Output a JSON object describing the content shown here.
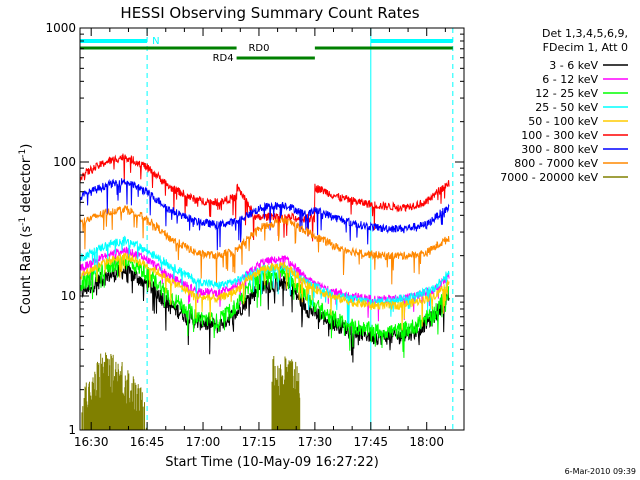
{
  "chart_data": {
    "type": "line",
    "title": "HESSI Observing Summary Count Rates",
    "xlabel": "Start Time (10-May-09 16:27:22)",
    "ylabel_main": "Count Rate (s",
    "ylabel_sup1": "-1",
    "ylabel_mid": " detector",
    "ylabel_sup2": "-1",
    "ylabel_end": ")",
    "x_unit": "minutes of day",
    "xlim": [
      987,
      1090
    ],
    "ylim": [
      1,
      1000
    ],
    "yscale": "log",
    "x_ticks": [
      {
        "value": 990,
        "label": "16:30"
      },
      {
        "value": 1005,
        "label": "16:45"
      },
      {
        "value": 1020,
        "label": "17:00"
      },
      {
        "value": 1035,
        "label": "17:15"
      },
      {
        "value": 1050,
        "label": "17:30"
      },
      {
        "value": 1065,
        "label": "17:45"
      },
      {
        "value": 1080,
        "label": "18:00"
      }
    ],
    "y_ticks": [
      {
        "value": 1,
        "label": "1"
      },
      {
        "value": 10,
        "label": "10"
      },
      {
        "value": 100,
        "label": "100"
      },
      {
        "value": 1000,
        "label": "1000"
      }
    ],
    "legend": {
      "position": "right",
      "header": [
        "Det 1,3,4,5,6,9,",
        "FDecim 1, Att 0"
      ]
    },
    "series": [
      {
        "name": "3 - 6 keV",
        "color": "#000000",
        "x": [
          987,
          994,
          999,
          1004,
          1011,
          1018,
          1024,
          1029,
          1036,
          1042,
          1048,
          1054,
          1060,
          1066,
          1072,
          1077,
          1082,
          1086
        ],
        "y": [
          10.5,
          14,
          15.5,
          13,
          8.5,
          6.5,
          6,
          7.5,
          12,
          12.5,
          8,
          6.5,
          5.5,
          5,
          5,
          5.5,
          7,
          10
        ]
      },
      {
        "name": "6 - 12 keV",
        "color": "#ff00ff",
        "x": [
          987,
          994,
          999,
          1004,
          1011,
          1018,
          1024,
          1029,
          1036,
          1042,
          1048,
          1054,
          1060,
          1066,
          1072,
          1077,
          1082,
          1086
        ],
        "y": [
          16,
          20,
          22,
          19.5,
          14,
          11,
          10.5,
          12,
          18,
          19,
          13,
          11,
          10,
          9.5,
          9.5,
          10,
          11,
          14
        ]
      },
      {
        "name": "12 - 25 keV",
        "color": "#00ff00",
        "x": [
          987,
          994,
          999,
          1004,
          1011,
          1018,
          1024,
          1029,
          1036,
          1042,
          1048,
          1054,
          1060,
          1066,
          1072,
          1077,
          1082,
          1086
        ],
        "y": [
          12,
          16.5,
          18.5,
          15.5,
          10,
          7,
          6.5,
          8.5,
          14.5,
          15,
          9.5,
          7,
          6,
          5.5,
          5.5,
          6,
          7.5,
          11
        ]
      },
      {
        "name": "25 - 50 keV",
        "color": "#00ffff",
        "x": [
          987,
          994,
          999,
          1004,
          1011,
          1018,
          1024,
          1029,
          1036,
          1042,
          1048,
          1054,
          1060,
          1066,
          1072,
          1077,
          1082,
          1086
        ],
        "y": [
          19,
          24,
          26,
          22.5,
          17,
          13,
          12,
          13,
          16,
          16.5,
          12.5,
          10.5,
          9.5,
          9,
          9.5,
          10,
          11.5,
          15
        ]
      },
      {
        "name": "50 - 100 keV",
        "color": "#ffcc00",
        "x": [
          987,
          994,
          999,
          1004,
          1011,
          1018,
          1024,
          1029,
          1036,
          1042,
          1048,
          1054,
          1060,
          1066,
          1072,
          1077,
          1082,
          1086
        ],
        "y": [
          14,
          18,
          20,
          17.5,
          13,
          10,
          9.5,
          11,
          16,
          17,
          12,
          10,
          9,
          8.5,
          8.5,
          9,
          10,
          12.5
        ]
      },
      {
        "name": "100 - 300 keV",
        "color": "#ff0000",
        "x": [
          987,
          994,
          999,
          1004,
          1011,
          1018,
          1024,
          1029,
          1029.1,
          1034,
          1040,
          1045,
          1049.9,
          1050,
          1056,
          1062,
          1068,
          1074,
          1080,
          1086
        ],
        "y": [
          78,
          100,
          110,
          95,
          65,
          52,
          50,
          55,
          65,
          38,
          40,
          38,
          38,
          65,
          55,
          50,
          47,
          46,
          50,
          70
        ]
      },
      {
        "name": "300 - 800 keV",
        "color": "#0000ff",
        "x": [
          987,
          994,
          999,
          1004,
          1011,
          1018,
          1024,
          1029,
          1036,
          1042,
          1048,
          1050,
          1056,
          1062,
          1068,
          1074,
          1080,
          1086
        ],
        "y": [
          55,
          67,
          72,
          62,
          44,
          36,
          34,
          36,
          46,
          48,
          40,
          44,
          38,
          34,
          32,
          32,
          34,
          46
        ]
      },
      {
        "name": "800 - 7000 keV",
        "color": "#ff8800",
        "x": [
          987,
          994,
          999,
          1004,
          1011,
          1018,
          1024,
          1029,
          1036,
          1042,
          1048,
          1050,
          1056,
          1062,
          1068,
          1074,
          1080,
          1086
        ],
        "y": [
          35,
          42,
          45,
          39,
          27,
          21,
          20,
          22,
          33,
          37,
          30,
          28,
          23,
          21,
          20,
          20,
          21,
          27
        ]
      },
      {
        "name": "7000 - 20000 keV",
        "color": "#808000",
        "x": [
          987,
          990,
          993,
          996,
          999,
          1002,
          1004.5,
          1005,
          1040,
          1044
        ],
        "y": [
          1.2,
          2.2,
          3,
          2.8,
          2.6,
          1.8,
          1.5,
          1,
          2.8,
          2.8
        ]
      }
    ],
    "annotations": [
      {
        "label": "N",
        "color": "#00ffff"
      },
      {
        "label": "RD0",
        "color": "#008000"
      },
      {
        "label": "RD4",
        "color": "#008000"
      }
    ],
    "footer_date": "6-Mar-2010 09:39"
  }
}
